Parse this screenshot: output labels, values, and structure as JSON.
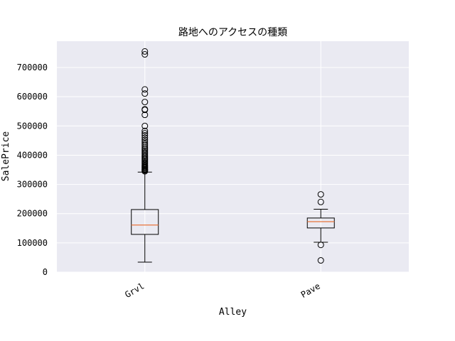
{
  "chart_data": {
    "type": "box",
    "title": "路地へのアクセスの種類",
    "xlabel": "Alley",
    "ylabel": "SalePrice",
    "ylim": [
      0,
      790000
    ],
    "yticks": [
      0,
      100000,
      200000,
      300000,
      400000,
      500000,
      600000,
      700000
    ],
    "ytick_labels": [
      "0",
      "100000",
      "200000",
      "300000",
      "400000",
      "500000",
      "600000",
      "700000"
    ],
    "grid": true,
    "categories": [
      "Grvl",
      "Pave"
    ],
    "boxes": [
      {
        "category": "Grvl",
        "whisker_low": 34000,
        "q1": 129000,
        "median": 161000,
        "q3": 214000,
        "whisker_high": 342000,
        "outliers": [
          345000,
          348000,
          350000,
          352000,
          355000,
          358000,
          360000,
          363000,
          366000,
          370000,
          374000,
          378000,
          382000,
          386000,
          390000,
          395000,
          400000,
          405000,
          410000,
          415000,
          420000,
          425000,
          432000,
          438000,
          445000,
          452000,
          460000,
          468000,
          475000,
          483000,
          500000,
          538000,
          555000,
          557000,
          582000,
          611000,
          625000,
          745000,
          755000
        ]
      },
      {
        "category": "Pave",
        "whisker_low": 102000,
        "q1": 151000,
        "median": 172500,
        "q3": 185000,
        "whisker_high": 215000,
        "outliers": [
          40000,
          93000,
          240000,
          266000
        ]
      }
    ],
    "colors": {
      "plot_bg": "#eaeaf2",
      "grid": "#ffffff",
      "box": "#000000",
      "median": "#e8743b"
    }
  }
}
